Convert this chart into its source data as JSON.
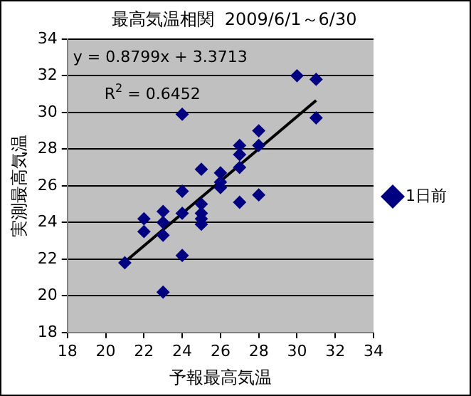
{
  "chart_data": {
    "type": "scatter",
    "title": "最高気温相関  2009/6/1～6/30",
    "xlabel": "予報最高気温",
    "ylabel": "実測最高気温",
    "series": [
      {
        "name": "1日前",
        "color": "#000080",
        "marker": "diamond",
        "x": [
          21,
          22,
          22,
          23,
          23,
          23,
          23,
          24,
          24,
          24,
          24,
          25,
          25,
          25,
          25,
          25,
          26,
          26,
          26,
          27,
          27,
          27,
          27,
          28,
          28,
          28,
          30,
          31,
          31
        ],
        "values": [
          21.8,
          24.2,
          23.5,
          24.6,
          24,
          23.3,
          20.2,
          29.9,
          25.7,
          24.5,
          22.2,
          26.9,
          25,
          24.5,
          24.2,
          23.9,
          26.7,
          26.2,
          25.9,
          28.2,
          27.7,
          27,
          25.1,
          29,
          28.2,
          25.5,
          32,
          31.8,
          29.7
        ]
      },
      {
        "type": "line",
        "color": "#000000",
        "marker": "none",
        "x": [
          21,
          31
        ],
        "values": [
          21.85,
          30.65
        ]
      }
    ],
    "annotations": [
      "y = 0.8799x + 3.3713",
      "R$^{2}$ = 0.6452"
    ],
    "xlim": [
      18,
      34
    ],
    "xticks": [
      18,
      20,
      22,
      24,
      26,
      28,
      30,
      32,
      34
    ],
    "ylim": [
      18,
      34
    ],
    "yticks": [
      18,
      20,
      22,
      24,
      26,
      28,
      30,
      32,
      34
    ],
    "grid": "y",
    "legend": "right"
  }
}
